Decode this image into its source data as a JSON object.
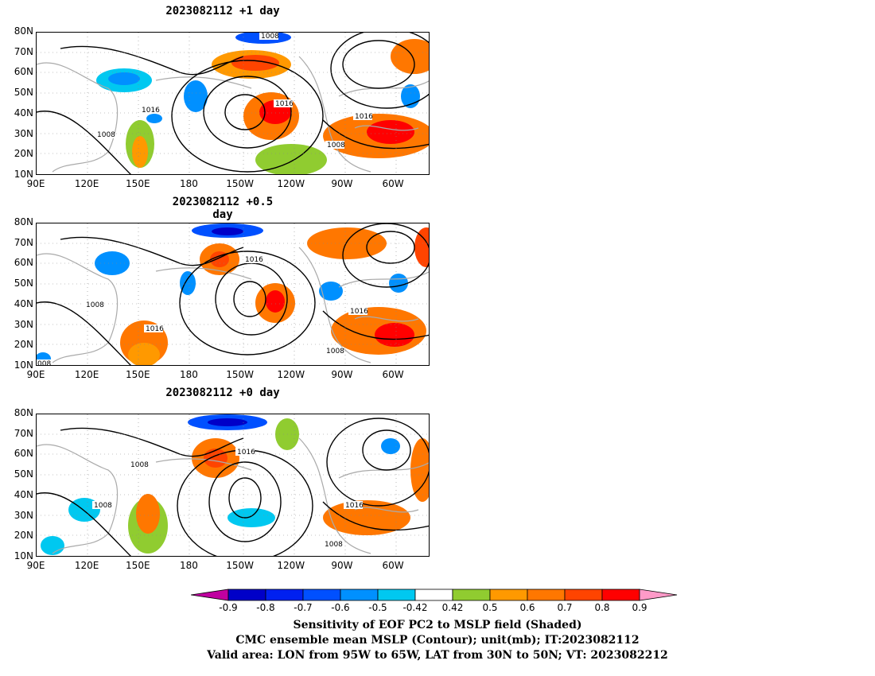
{
  "panels": [
    {
      "title": "2023082112 +1 day",
      "contours": [
        {
          "text": "1008"
        },
        {
          "text": "1016"
        },
        {
          "text": "1016"
        },
        {
          "text": "1008"
        },
        {
          "text": "1016"
        },
        {
          "text": "1008"
        }
      ]
    },
    {
      "title": "2023082112 +0.5 day",
      "contours": [
        {
          "text": "1016"
        },
        {
          "text": "1008"
        },
        {
          "text": "1016"
        },
        {
          "text": "1016"
        },
        {
          "text": "1008"
        },
        {
          "text": "008"
        }
      ]
    },
    {
      "title": "2023082112 +0 day",
      "contours": [
        {
          "text": "1008"
        },
        {
          "text": "1016"
        },
        {
          "text": "1008"
        },
        {
          "text": "1016"
        },
        {
          "text": "1008"
        }
      ]
    }
  ],
  "lat_labels": [
    "80N",
    "70N",
    "60N",
    "50N",
    "40N",
    "30N",
    "20N",
    "10N"
  ],
  "lon_labels": [
    "90E",
    "120E",
    "150E",
    "180",
    "150W",
    "120W",
    "90W",
    "60W"
  ],
  "colorbar": {
    "labels": [
      "-0.9",
      "-0.8",
      "-0.7",
      "-0.6",
      "-0.5",
      "-0.42",
      "0.42",
      "0.5",
      "0.6",
      "0.7",
      "0.8",
      "0.9"
    ],
    "colors": [
      "#c000a0",
      "#0000c8",
      "#0020f0",
      "#0050ff",
      "#0090ff",
      "#00c8f0",
      "#ffffff",
      "#90cc30",
      "#ff9900",
      "#ff7700",
      "#ff4400",
      "#ff0000",
      "#ff9ac8"
    ]
  },
  "caption": {
    "line1": "Sensitivity of EOF PC2 to MSLP field (Shaded)",
    "line2": "CMC ensemble mean MSLP (Contour); unit(mb); IT:2023082112",
    "line3": "Valid area: LON from 95W to 65W, LAT from 30N to 50N; VT: 2023082212"
  }
}
